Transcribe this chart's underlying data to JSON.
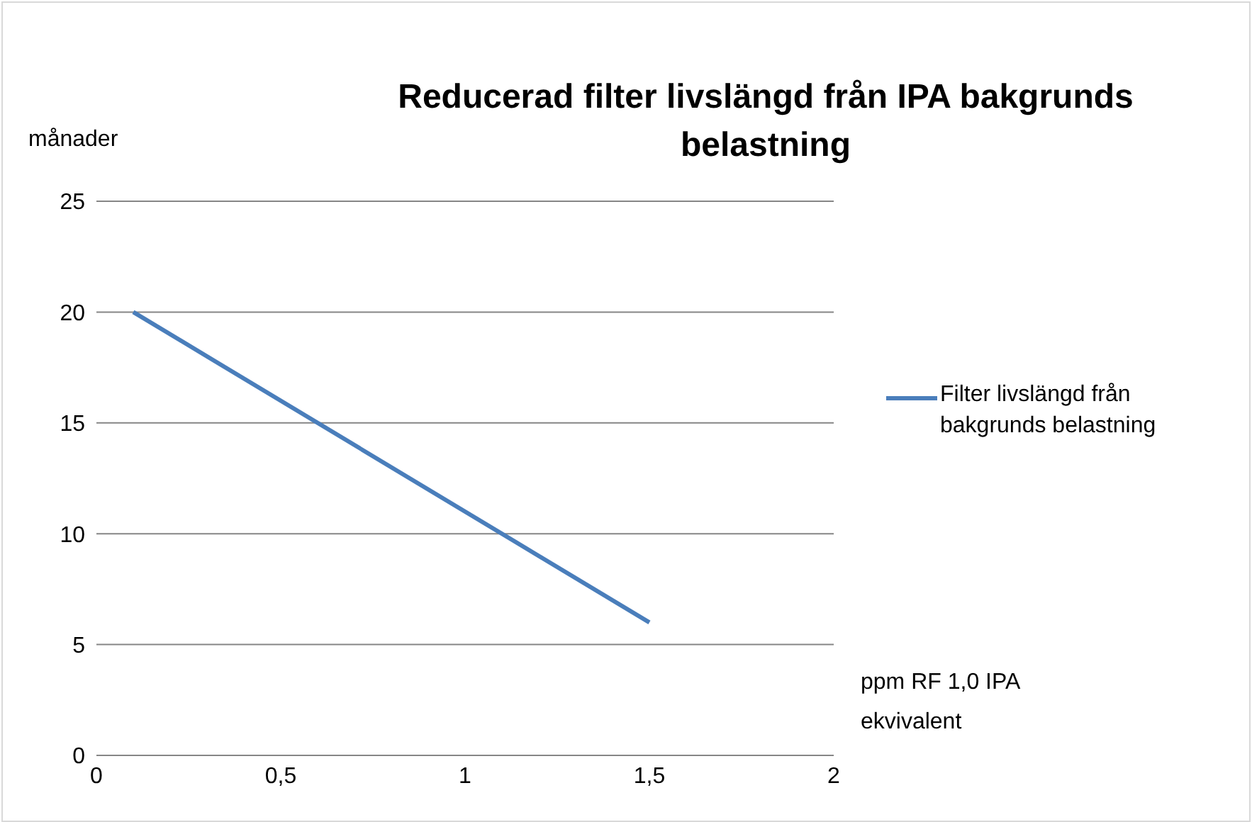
{
  "chart_data": {
    "type": "line",
    "title": "Reducerad filter livslängd från IPA bakgrunds belastning",
    "ylabel": "månader",
    "xlabel": "ppm RF 1,0 IPA ekvivalent",
    "x": [
      0.1,
      1.5
    ],
    "series": [
      {
        "name": "Filter livslängd från bakgrunds belastning",
        "color": "#4a7ebb",
        "values": [
          20,
          6
        ]
      }
    ],
    "xlim": [
      0,
      2
    ],
    "xticks": [
      0,
      {
        "value": 0.5,
        "label": "0,5"
      },
      1,
      {
        "value": 1.5,
        "label": "1,5"
      },
      2
    ],
    "ylim": [
      0,
      25
    ],
    "yticks": [
      0,
      5,
      10,
      15,
      20,
      25
    ],
    "grid": "y",
    "legend": "right",
    "marker": "none",
    "line_style": "solid"
  }
}
